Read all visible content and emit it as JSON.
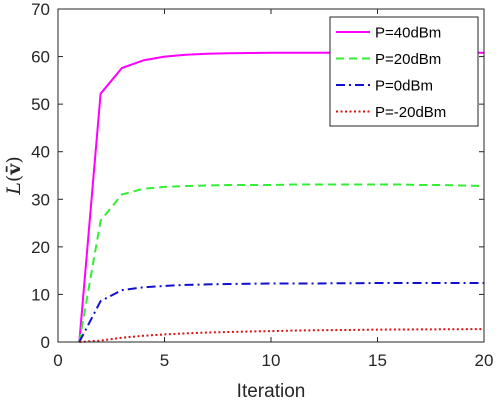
{
  "chart_data": {
    "type": "line",
    "xlabel": "Iteration",
    "ylabel": "L(v̄)",
    "xlim": [
      0,
      20
    ],
    "ylim": [
      0,
      70
    ],
    "xticks": [
      0,
      5,
      10,
      15,
      20
    ],
    "yticks": [
      0,
      10,
      20,
      30,
      40,
      50,
      60,
      70
    ],
    "grid": false,
    "legend_position": "top-right",
    "x": [
      1,
      2,
      3,
      4,
      5,
      6,
      7,
      8,
      9,
      10,
      11,
      12,
      13,
      14,
      15,
      16,
      17,
      18,
      19,
      20
    ],
    "series": [
      {
        "name": "P=40dBm",
        "color": "#ff00ff",
        "style": "solid",
        "values": [
          0,
          52.2,
          57.6,
          59.2,
          60.0,
          60.4,
          60.6,
          60.7,
          60.75,
          60.8,
          60.8,
          60.8,
          60.8,
          60.8,
          60.8,
          60.8,
          60.8,
          60.8,
          60.8,
          60.8
        ]
      },
      {
        "name": "P=20dBm",
        "color": "#33ee33",
        "style": "dashed",
        "values": [
          0,
          25.5,
          31.0,
          32.2,
          32.6,
          32.8,
          32.9,
          33.0,
          33.0,
          33.0,
          33.1,
          33.1,
          33.1,
          33.1,
          33.1,
          33.1,
          33.0,
          33.0,
          32.9,
          32.8
        ]
      },
      {
        "name": "P=0dBm",
        "color": "#1010cc",
        "style": "dashdot",
        "values": [
          0,
          8.6,
          10.9,
          11.5,
          11.8,
          12.0,
          12.1,
          12.2,
          12.25,
          12.3,
          12.3,
          12.3,
          12.35,
          12.35,
          12.4,
          12.4,
          12.4,
          12.4,
          12.4,
          12.4
        ]
      },
      {
        "name": "P=-20dBm",
        "color": "#dd1111",
        "style": "dotted",
        "values": [
          0,
          0.3,
          0.9,
          1.3,
          1.6,
          1.8,
          2.0,
          2.1,
          2.2,
          2.3,
          2.4,
          2.45,
          2.5,
          2.55,
          2.6,
          2.62,
          2.65,
          2.68,
          2.7,
          2.72
        ]
      }
    ]
  }
}
